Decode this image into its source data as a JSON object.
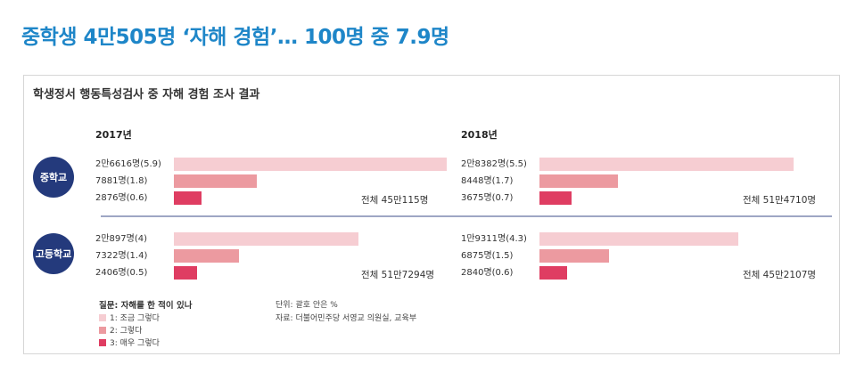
{
  "headline": "중학생 4만505명 ‘자해 경험’… 100명 중 7.9명",
  "chart_data": {
    "type": "bar",
    "title": "학생정서 행동특성검사 중 자해 경험 조사 결과",
    "years": [
      "2017년",
      "2018년"
    ],
    "question": "질문: 자해를 한 적이 있나",
    "legend": [
      {
        "label": "1: 조금 그렇다",
        "color": "#f6cdd2"
      },
      {
        "label": "2: 그렇다",
        "color": "#ec9aa0"
      },
      {
        "label": "3: 매우 그렇다",
        "color": "#df3d62"
      }
    ],
    "unit_note": "단위: 괄호 안은 %",
    "source_note": "자료: 더불어민주당 서영교 의원실, 교육부",
    "groups": [
      {
        "name": "중학교",
        "panels": [
          {
            "year": "2017년",
            "counts": [
              26616,
              7881,
              2876
            ],
            "percents": [
              5.9,
              1.8,
              0.6
            ],
            "labels": [
              "2만6616명(5.9)",
              "7881명(1.8)",
              "2876명(0.6)"
            ],
            "total": "전체 45만115명"
          },
          {
            "year": "2018년",
            "counts": [
              28382,
              8448,
              3675
            ],
            "percents": [
              5.5,
              1.7,
              0.7
            ],
            "labels": [
              "2만8382명(5.5)",
              "8448명(1.7)",
              "3675명(0.7)"
            ],
            "total": "전체 51만4710명"
          }
        ]
      },
      {
        "name": "고등학교",
        "panels": [
          {
            "year": "2017년",
            "counts": [
              20897,
              7322,
              2406
            ],
            "percents": [
              4,
              1.4,
              0.5
            ],
            "labels": [
              "2만897명(4)",
              "7322명(1.4)",
              "2406명(0.5)"
            ],
            "total": "전체 51만7294명"
          },
          {
            "year": "2018년",
            "counts": [
              19311,
              6875,
              2840
            ],
            "percents": [
              4.3,
              1.5,
              0.6
            ],
            "labels": [
              "1만9311명(4.3)",
              "6875명(1.5)",
              "2840명(0.6)"
            ],
            "total": "전체 45만2107명"
          }
        ]
      }
    ]
  }
}
